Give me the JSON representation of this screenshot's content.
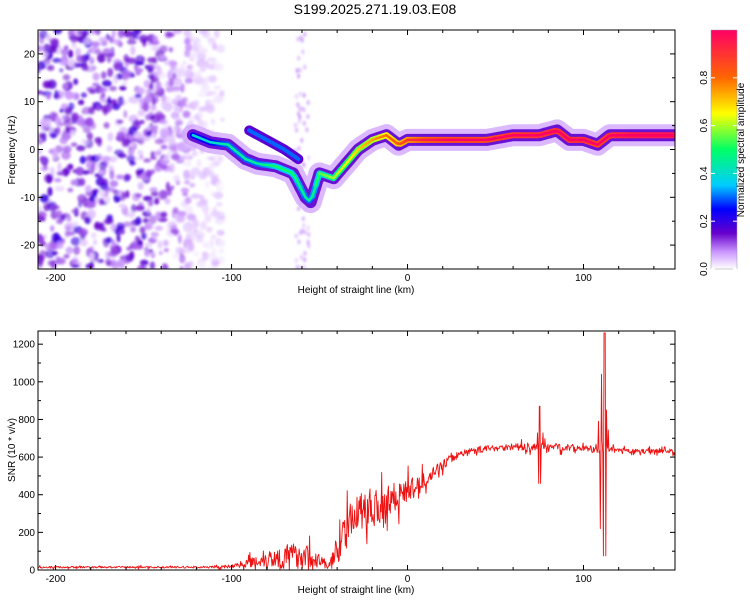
{
  "figure_title": "S199.2025.271.19.03.E08",
  "chart_data": [
    {
      "type": "heatmap",
      "title": "S199.2025.271.19.03.E08",
      "xlabel": "Height of straight line (km)",
      "ylabel": "Frequency (Hz)",
      "xlim": [
        -210,
        152
      ],
      "ylim": [
        -25,
        25
      ],
      "xticks": [
        -200,
        -100,
        0,
        100
      ],
      "yticks": [
        -20,
        -10,
        0,
        10,
        20
      ],
      "colorbar": {
        "label": "Normalized spectral amplitude",
        "range": [
          0,
          1
        ],
        "ticks": [
          "0.0",
          "0.2",
          "0.4",
          "0.6",
          "0.8"
        ],
        "tick_values": [
          0.0,
          0.2,
          0.4,
          0.6,
          0.8
        ],
        "colors": [
          "#ffffff",
          "#cc99ff",
          "#6600cc",
          "#0000ff",
          "#00ccff",
          "#00ff66",
          "#ffff00",
          "#ff6600",
          "#ff0066"
        ]
      },
      "noise_region_x": [
        -210,
        -105
      ],
      "ridge": {
        "x": [
          -122,
          -112,
          -102,
          -92,
          -85,
          -75,
          -65,
          -58,
          -55,
          -50,
          -42,
          -35,
          -28,
          -20,
          -12,
          -5,
          0,
          10,
          25,
          45,
          60,
          75,
          85,
          92,
          100,
          108,
          115,
          130,
          152
        ],
        "freq": [
          3,
          1.5,
          1,
          -2,
          -3,
          -3.5,
          -5,
          -10,
          -11,
          -5,
          -6,
          -3,
          0,
          2,
          3,
          1,
          2,
          2,
          2,
          2,
          3,
          3,
          4,
          2,
          2,
          1,
          3,
          3,
          3
        ],
        "amp": [
          0.25,
          0.25,
          0.3,
          0.3,
          0.3,
          0.35,
          0.35,
          0.3,
          0.3,
          0.4,
          0.45,
          0.5,
          0.55,
          0.6,
          0.65,
          0.7,
          0.75,
          0.8,
          0.85,
          0.85,
          0.88,
          0.9,
          0.9,
          0.9,
          0.9,
          0.85,
          0.9,
          0.95,
          0.95
        ]
      },
      "secondary_ridge": {
        "x": [
          -90,
          -80,
          -70,
          -62
        ],
        "freq": [
          4,
          2,
          0,
          -2
        ],
        "amp": [
          0.3,
          0.3,
          0.3,
          0.3
        ]
      }
    },
    {
      "type": "line",
      "title": "",
      "xlabel": "Height of straight line (km)",
      "ylabel": "SNR (10 * v/v)",
      "xlim": [
        -210,
        152
      ],
      "ylim": [
        0,
        1270
      ],
      "xticks": [
        -200,
        -100,
        0,
        100
      ],
      "yticks": [
        0,
        200,
        400,
        600,
        800,
        1000,
        1200
      ],
      "color": "#ee1111",
      "envelope": {
        "x": [
          -210,
          -150,
          -110,
          -100,
          -90,
          -80,
          -70,
          -60,
          -50,
          -45,
          -40,
          -35,
          -30,
          -20,
          -10,
          0,
          10,
          20,
          30,
          40,
          50,
          60,
          70,
          80,
          90,
          100,
          105,
          110,
          115,
          120,
          130,
          140,
          152
        ],
        "base": [
          15,
          15,
          15,
          20,
          40,
          60,
          70,
          80,
          50,
          20,
          100,
          220,
          300,
          330,
          380,
          420,
          480,
          560,
          620,
          640,
          650,
          655,
          650,
          660,
          650,
          650,
          640,
          630,
          640,
          635,
          630,
          635,
          630
        ],
        "amp": [
          8,
          8,
          10,
          15,
          40,
          80,
          110,
          120,
          60,
          40,
          120,
          150,
          160,
          180,
          160,
          100,
          60,
          40,
          30,
          30,
          30,
          30,
          30,
          30,
          30,
          30,
          30,
          30,
          25,
          20,
          20,
          20,
          20
        ]
      },
      "spikes": [
        {
          "x": 75,
          "value": 870,
          "min": 460
        },
        {
          "x": 110,
          "value": 1040,
          "min": 220
        },
        {
          "x": 112,
          "value": 1260,
          "min": 75
        }
      ]
    }
  ]
}
